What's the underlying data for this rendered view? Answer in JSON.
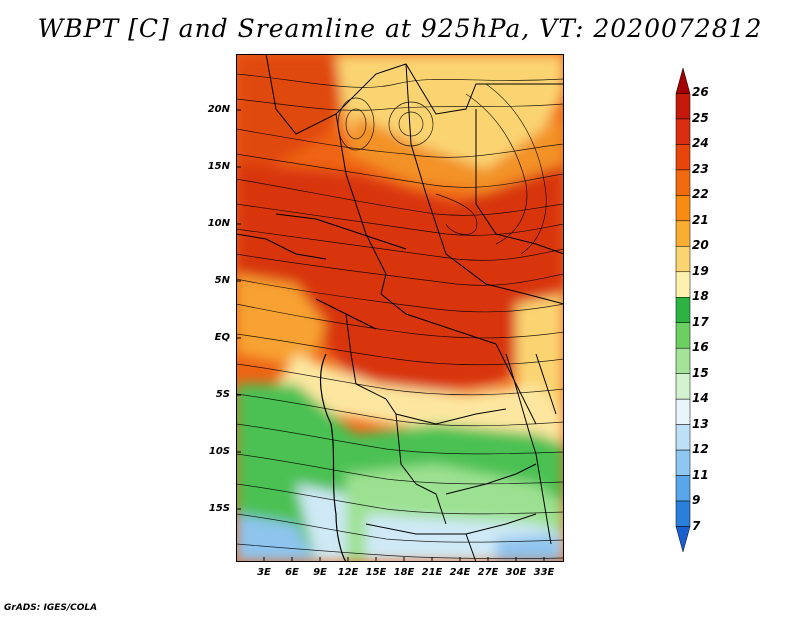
{
  "title": "WBPT [C] and Sreamline at 925hPa, VT: 2020072812",
  "footer": "GrADS: IGES/COLA",
  "y_axis_labels": [
    "20N",
    "15N",
    "10N",
    "5N",
    "EQ",
    "5S",
    "10S",
    "15S"
  ],
  "x_axis_labels": [
    "3E",
    "6E",
    "9E",
    "12E",
    "15E",
    "18E",
    "21E",
    "24E",
    "27E",
    "30E",
    "33E"
  ],
  "colorbar": {
    "labels": [
      "26",
      "25",
      "24",
      "23",
      "22",
      "21",
      "20",
      "19",
      "18",
      "17",
      "16",
      "15",
      "14",
      "13",
      "12",
      "11",
      "9",
      "7"
    ],
    "colors": [
      "#a50000",
      "#c51a0a",
      "#db2d0f",
      "#e8450d",
      "#f06a10",
      "#f88b12",
      "#f9ad32",
      "#fbd472",
      "#fdf1b0",
      "#2db342",
      "#6ccf62",
      "#a6e39a",
      "#d3f3cf",
      "#e8f6fb",
      "#bde0f7",
      "#8ec7f2",
      "#5aa6ea",
      "#2a7fdb",
      "#1a5fcf"
    ]
  },
  "map_colors": {
    "hot": "#d8350c",
    "warm": "#ee6414",
    "orange": "#f7a232",
    "yellow": "#fde7a0",
    "green": "#4cc152",
    "lightgreen": "#9ce191",
    "paleblue": "#cfe9f6",
    "blue": "#8ec4ee"
  }
}
